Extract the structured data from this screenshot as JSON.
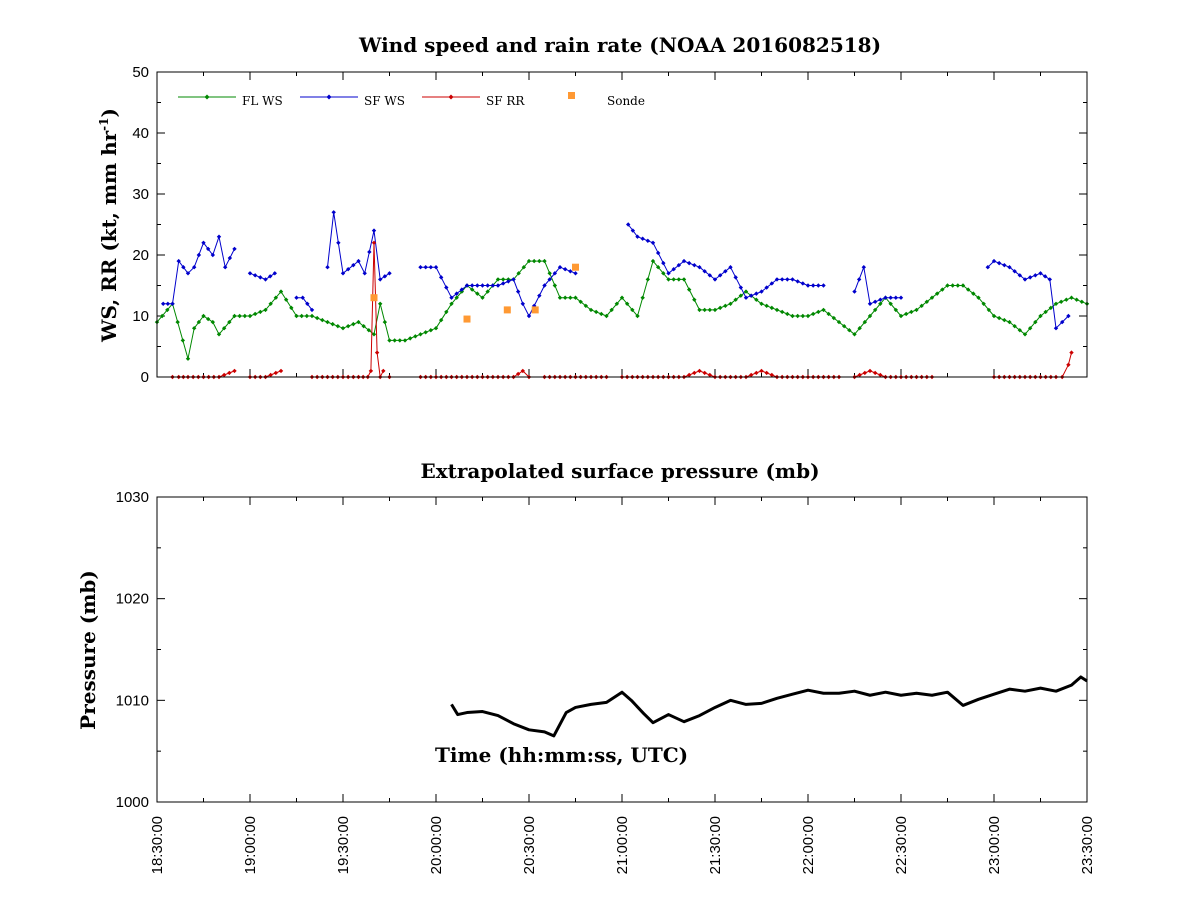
{
  "chart_data": [
    {
      "type": "line",
      "title": "Wind speed and rain rate (NOAA 2016082518)",
      "ylabel": "WS, RR (kt, mm hr",
      "ylabel_sup": "-1",
      "ylabel_close": ")",
      "xlabel": "",
      "xlim": [
        "18:30:00",
        "23:30:00"
      ],
      "ylim": [
        0,
        50
      ],
      "yticks": [
        "0",
        "10",
        "20",
        "30",
        "40",
        "50"
      ],
      "legend_position": "top-left",
      "series": [
        {
          "name": "FL WS",
          "color": "#008800",
          "marker": "diamond",
          "x": [
            "18:30",
            "18:35",
            "18:40",
            "18:42",
            "18:45",
            "18:48",
            "18:50",
            "18:55",
            "19:00",
            "19:05",
            "19:10",
            "19:15",
            "19:20",
            "19:25",
            "19:30",
            "19:35",
            "19:40",
            "19:42",
            "19:45",
            "19:50",
            "19:55",
            "20:00",
            "20:05",
            "20:10",
            "20:15",
            "20:20",
            "20:25",
            "20:30",
            "20:35",
            "20:40",
            "20:45",
            "20:50",
            "20:55",
            "21:00",
            "21:05",
            "21:10",
            "21:15",
            "21:20",
            "21:25",
            "21:30",
            "21:35",
            "21:40",
            "21:45",
            "21:50",
            "21:55",
            "22:00",
            "22:05",
            "22:10",
            "22:15",
            "22:20",
            "22:25",
            "22:30",
            "22:35",
            "22:40",
            "22:45",
            "22:50",
            "22:55",
            "23:00",
            "23:05",
            "23:10",
            "23:15",
            "23:20",
            "23:25",
            "23:30"
          ],
          "values": [
            9,
            12,
            3,
            8,
            10,
            9,
            7,
            10,
            10,
            11,
            14,
            10,
            10,
            9,
            8,
            9,
            7,
            12,
            6,
            6,
            7,
            8,
            12,
            15,
            13,
            16,
            16,
            19,
            19,
            13,
            13,
            11,
            10,
            13,
            10,
            19,
            16,
            16,
            11,
            11,
            12,
            14,
            12,
            11,
            10,
            10,
            11,
            9,
            7,
            10,
            13,
            10,
            11,
            13,
            15,
            15,
            13,
            10,
            9,
            7,
            10,
            12,
            13,
            12
          ]
        },
        {
          "name": "SF WS",
          "color": "#0000cc",
          "marker": "diamond",
          "x": [
            "18:32",
            "18:35",
            "18:37",
            "18:40",
            "18:42",
            "18:45",
            "18:48",
            "18:50",
            "18:52",
            "18:55",
            "null1",
            "19:00",
            "19:05",
            "19:08",
            "null2",
            "19:15",
            "19:17",
            "19:20",
            "null3",
            "19:25",
            "19:27",
            "19:30",
            "19:35",
            "19:37",
            "19:40",
            "19:42",
            "19:45",
            "null4",
            "19:55",
            "20:00",
            "20:05",
            "20:10",
            "20:15",
            "20:20",
            "20:25",
            "20:28",
            "20:30",
            "20:35",
            "20:40",
            "20:45",
            "null5",
            "21:02",
            "21:05",
            "21:10",
            "21:15",
            "21:20",
            "21:25",
            "21:30",
            "21:35",
            "21:40",
            "21:45",
            "21:50",
            "21:55",
            "22:00",
            "22:05",
            "null6",
            "22:15",
            "22:18",
            "22:20",
            "22:25",
            "22:30",
            "null7",
            "22:58",
            "23:00",
            "23:05",
            "23:10",
            "23:15",
            "23:18",
            "23:20",
            "23:22",
            "23:24"
          ],
          "values": [
            12,
            12,
            19,
            17,
            18,
            22,
            20,
            23,
            18,
            21,
            null,
            17,
            16,
            17,
            null,
            13,
            13,
            11,
            null,
            18,
            27,
            17,
            19,
            17,
            24,
            16,
            17,
            null,
            18,
            18,
            13,
            15,
            15,
            15,
            16,
            12,
            10,
            15,
            18,
            17,
            null,
            25,
            23,
            22,
            17,
            19,
            18,
            16,
            18,
            13,
            14,
            16,
            16,
            15,
            15,
            null,
            14,
            18,
            12,
            13,
            13,
            null,
            18,
            19,
            18,
            16,
            17,
            16,
            8,
            9,
            10
          ]
        },
        {
          "name": "SF RR",
          "color": "#cc0000",
          "marker": "diamond",
          "x": [
            "18:35",
            "18:37",
            "18:40",
            "18:45",
            "18:50",
            "18:55",
            "null1",
            "19:00",
            "19:05",
            "19:10",
            "null2",
            "19:20",
            "19:25",
            "19:30",
            "19:35",
            "19:38",
            "19:39",
            "19:40",
            "19:41",
            "19:42",
            "19:43",
            "null3",
            "19:45",
            "null4",
            "19:55",
            "20:00",
            "20:05",
            "20:10",
            "20:15",
            "20:20",
            "20:25",
            "20:28",
            "20:30",
            "null5",
            "20:35",
            "20:40",
            "20:45",
            "20:50",
            "20:55",
            "null6",
            "21:00",
            "21:05",
            "21:10",
            "21:15",
            "21:20",
            "21:25",
            "21:30",
            "21:35",
            "21:40",
            "21:45",
            "21:50",
            "21:55",
            "22:00",
            "22:05",
            "22:10",
            "null7",
            "22:15",
            "22:20",
            "22:25",
            "22:30",
            "22:35",
            "22:40",
            "null8",
            "23:00",
            "23:05",
            "23:10",
            "23:15",
            "23:20",
            "23:22",
            "23:24",
            "23:25"
          ],
          "values": [
            0,
            0,
            0,
            0,
            0,
            1,
            null,
            0,
            0,
            1,
            null,
            0,
            0,
            0,
            0,
            0,
            1,
            22,
            4,
            0,
            1,
            null,
            0,
            null,
            0,
            0,
            0,
            0,
            0,
            0,
            0,
            1,
            0,
            null,
            0,
            0,
            0,
            0,
            0,
            null,
            0,
            0,
            0,
            0,
            0,
            1,
            0,
            0,
            0,
            1,
            0,
            0,
            0,
            0,
            0,
            null,
            0,
            1,
            0,
            0,
            0,
            0,
            null,
            0,
            0,
            0,
            0,
            0,
            0,
            2,
            4
          ]
        },
        {
          "name": "Sonde",
          "color": "#ff9933",
          "marker": "square",
          "x": [
            "19:40",
            "20:10",
            "20:23",
            "20:32",
            "20:45"
          ],
          "values": [
            13,
            9.5,
            11,
            11,
            18
          ]
        }
      ]
    },
    {
      "type": "line",
      "title": "Extrapolated surface pressure (mb)",
      "ylabel": "Pressure (mb)",
      "xlabel": "Time (hh:mm:ss, UTC)",
      "xlim": [
        "18:30:00",
        "23:30:00"
      ],
      "ylim": [
        1000,
        1030
      ],
      "yticks": [
        "1000",
        "1010",
        "1020",
        "1030"
      ],
      "xticks": [
        "18:30:00",
        "19:00:00",
        "19:30:00",
        "20:00:00",
        "20:30:00",
        "21:00:00",
        "21:30:00",
        "22:00:00",
        "22:30:00",
        "23:00:00",
        "23:30:00"
      ],
      "series": [
        {
          "color": "#000000",
          "x": [
            "20:05",
            "20:07",
            "20:10",
            "20:15",
            "20:20",
            "20:25",
            "20:30",
            "20:35",
            "20:38",
            "20:42",
            "20:45",
            "20:50",
            "20:55",
            "21:00",
            "21:03",
            "21:07",
            "21:10",
            "21:15",
            "21:20",
            "21:25",
            "21:30",
            "21:35",
            "21:40",
            "21:45",
            "21:50",
            "21:55",
            "22:00",
            "22:05",
            "22:10",
            "22:15",
            "22:20",
            "22:25",
            "22:30",
            "22:35",
            "22:40",
            "22:45",
            "22:50",
            "22:55",
            "23:00",
            "23:05",
            "23:10",
            "23:15",
            "23:20",
            "23:25",
            "23:28",
            "23:30"
          ],
          "values": [
            1009.6,
            1008.6,
            1008.8,
            1008.9,
            1008.5,
            1007.7,
            1007.1,
            1006.9,
            1006.5,
            1008.8,
            1009.3,
            1009.6,
            1009.8,
            1010.8,
            1010.0,
            1008.7,
            1007.8,
            1008.6,
            1007.9,
            1008.5,
            1009.3,
            1010.0,
            1009.6,
            1009.7,
            1010.2,
            1010.6,
            1011.0,
            1010.7,
            1010.7,
            1010.9,
            1010.5,
            1010.8,
            1010.5,
            1010.7,
            1010.5,
            1010.8,
            1009.5,
            1010.1,
            1010.6,
            1011.1,
            1010.9,
            1011.2,
            1010.9,
            1011.5,
            1012.3,
            1011.9
          ]
        }
      ]
    }
  ]
}
